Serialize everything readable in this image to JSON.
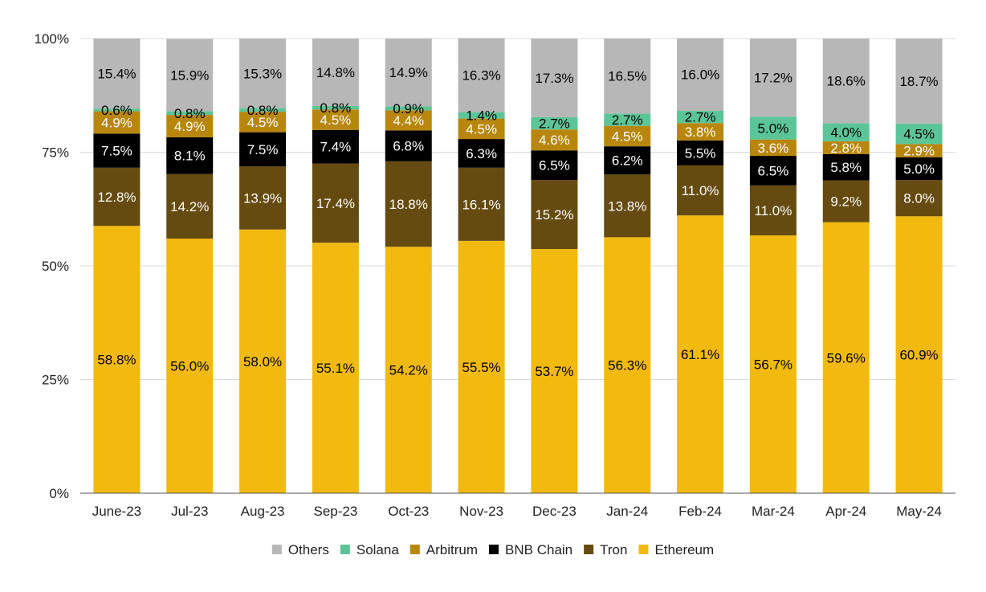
{
  "chart_data": {
    "type": "bar",
    "stacked": true,
    "percent_stacked": true,
    "title": "",
    "xlabel": "",
    "ylabel": "",
    "ylim": [
      0,
      100
    ],
    "y_ticks": [
      "0%",
      "25%",
      "50%",
      "75%",
      "100%"
    ],
    "y_tick_values": [
      0,
      25,
      50,
      75,
      100
    ],
    "grid": true,
    "legend_position": "bottom",
    "categories": [
      "June-23",
      "Jul-23",
      "Aug-23",
      "Sep-23",
      "Oct-23",
      "Nov-23",
      "Dec-23",
      "Jan-24",
      "Feb-24",
      "Mar-24",
      "Apr-24",
      "May-24"
    ],
    "series": [
      {
        "name": "Ethereum",
        "color": "#F2B90F",
        "label_color": "#000000",
        "values": [
          58.8,
          56.0,
          58.0,
          55.1,
          54.2,
          55.5,
          53.7,
          56.3,
          61.1,
          56.7,
          59.6,
          60.9
        ],
        "labels": [
          "58.8%",
          "56.0%",
          "58.0%",
          "55.1%",
          "54.2%",
          "55.5%",
          "53.7%",
          "56.3%",
          "61.1%",
          "56.7%",
          "59.6%",
          "60.9%"
        ]
      },
      {
        "name": "Tron",
        "color": "#664B10",
        "label_color": "#ffffff",
        "values": [
          12.8,
          14.2,
          13.9,
          17.4,
          18.8,
          16.1,
          15.2,
          13.8,
          11.0,
          11.0,
          9.2,
          8.0
        ],
        "labels": [
          "12.8%",
          "14.2%",
          "13.9%",
          "17.4%",
          "18.8%",
          "16.1%",
          "15.2%",
          "13.8%",
          "11.0%",
          "11.0%",
          "9.2%",
          "8.0%"
        ]
      },
      {
        "name": "BNB Chain",
        "color": "#000000",
        "label_color": "#ffffff",
        "values": [
          7.5,
          8.1,
          7.5,
          7.4,
          6.8,
          6.3,
          6.5,
          6.2,
          5.5,
          6.5,
          5.8,
          5.0
        ],
        "labels": [
          "7.5%",
          "8.1%",
          "7.5%",
          "7.4%",
          "6.8%",
          "6.3%",
          "6.5%",
          "6.2%",
          "5.5%",
          "6.5%",
          "5.8%",
          "5.0%"
        ]
      },
      {
        "name": "Arbitrum",
        "color": "#B8860B",
        "label_color": "#ffffff",
        "values": [
          4.9,
          4.9,
          4.5,
          4.5,
          4.4,
          4.5,
          4.6,
          4.5,
          3.8,
          3.6,
          2.8,
          2.9
        ],
        "labels": [
          "4.9%",
          "4.9%",
          "4.5%",
          "4.5%",
          "4.4%",
          "4.5%",
          "4.6%",
          "4.5%",
          "3.8%",
          "3.6%",
          "2.8%",
          "2.9%"
        ]
      },
      {
        "name": "Solana",
        "color": "#5CC597",
        "label_color": "#000000",
        "values": [
          0.6,
          0.8,
          0.8,
          0.8,
          0.9,
          1.4,
          2.7,
          2.7,
          2.7,
          5.0,
          4.0,
          4.5
        ],
        "labels": [
          "0.6%",
          "0.8%",
          "0.8%",
          "0.8%",
          "0.9%",
          "1.4%",
          "2.7%",
          "2.7%",
          "2.7%",
          "5.0%",
          "4.0%",
          "4.5%"
        ]
      },
      {
        "name": "Others",
        "color": "#B7B7B7",
        "label_color": "#000000",
        "values": [
          15.4,
          15.9,
          15.3,
          14.8,
          14.9,
          16.3,
          17.3,
          16.5,
          16.0,
          17.2,
          18.6,
          18.7
        ],
        "labels": [
          "15.4%",
          "15.9%",
          "15.3%",
          "14.8%",
          "14.9%",
          "16.3%",
          "17.3%",
          "16.5%",
          "16.0%",
          "17.2%",
          "18.6%",
          "18.7%"
        ]
      }
    ],
    "legend_order": [
      "Others",
      "Solana",
      "Arbitrum",
      "BNB Chain",
      "Tron",
      "Ethereum"
    ]
  }
}
